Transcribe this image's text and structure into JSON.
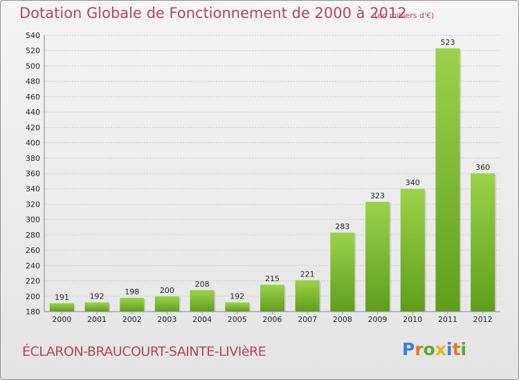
{
  "chart_data": {
    "type": "bar",
    "title": "Dotation Globale de Fonctionnement de 2000 à 2012",
    "subtitle": "(en milliers d'€)",
    "categories": [
      "2000",
      "2001",
      "2002",
      "2003",
      "2004",
      "2005",
      "2006",
      "2007",
      "2008",
      "2009",
      "2010",
      "2011",
      "2012"
    ],
    "values": [
      191,
      192,
      198,
      200,
      208,
      192,
      215,
      221,
      283,
      323,
      340,
      523,
      360
    ],
    "ylim": [
      180,
      540
    ],
    "yticks": [
      180,
      200,
      220,
      240,
      260,
      280,
      300,
      320,
      340,
      360,
      380,
      400,
      420,
      440,
      460,
      480,
      500,
      520,
      540
    ],
    "grid": true,
    "bar_color": "#7cb82f"
  },
  "footer": {
    "place_name": "ÉCLARON-BRAUCOURT-SAINTE-LIVIèRE",
    "logo_text": "Proxiti",
    "logo_colors": [
      "#3a7fd6",
      "#e07a1f",
      "#58a832",
      "#e0b71f",
      "#3a7fd6",
      "#e07a1f",
      "#58a832"
    ]
  }
}
